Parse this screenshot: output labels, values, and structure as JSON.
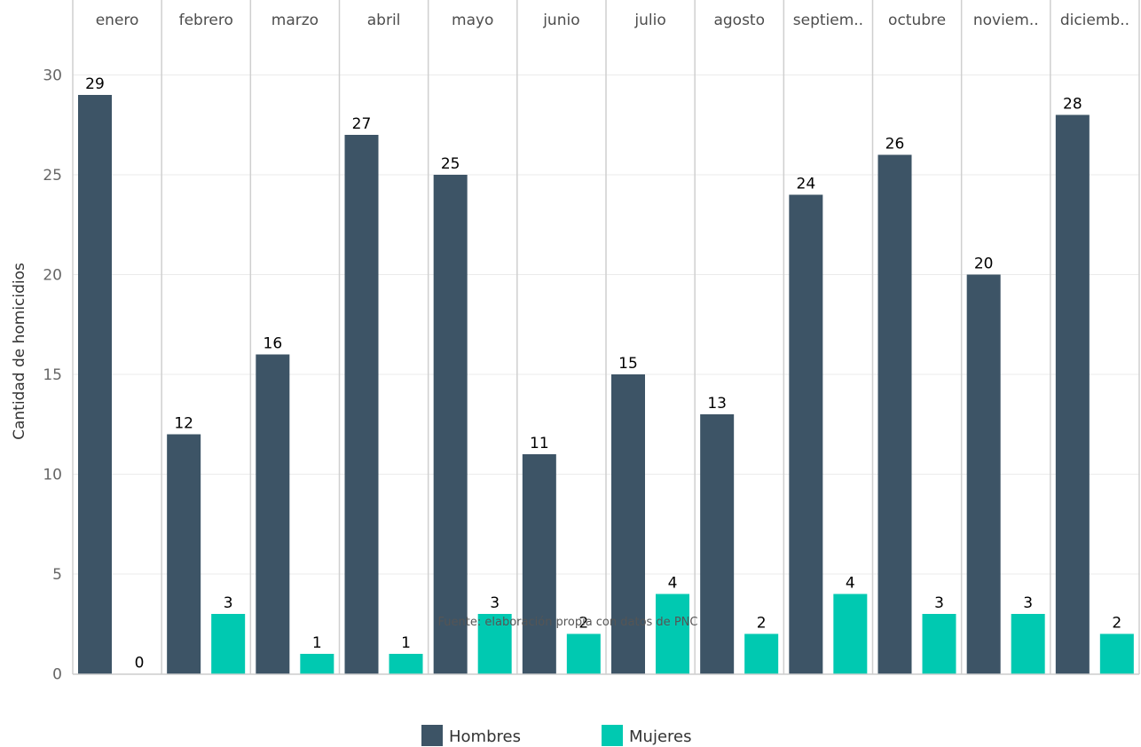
{
  "chart_data": {
    "type": "bar",
    "categories": [
      "enero",
      "febrero",
      "marzo",
      "abril",
      "mayo",
      "junio",
      "julio",
      "agosto",
      "septiem..",
      "octubre",
      "noviem..",
      "diciemb.."
    ],
    "series": [
      {
        "name": "Hombres",
        "values": [
          29,
          12,
          16,
          27,
          25,
          11,
          15,
          13,
          24,
          26,
          20,
          28
        ],
        "color": "#3d5466"
      },
      {
        "name": "Mujeres",
        "values": [
          0,
          3,
          1,
          1,
          3,
          2,
          4,
          2,
          4,
          3,
          3,
          2
        ],
        "color": "#00c9b1"
      }
    ],
    "ylabel": "Cantidad de homicidios",
    "xlabel": "",
    "ylim": [
      0,
      30
    ],
    "yticks": [
      0,
      5,
      10,
      15,
      20,
      25,
      30
    ],
    "caption": "Fuente: elaboración propia con datos de PNC",
    "legend_position": "bottom",
    "grid": true,
    "facet_by_category": true
  }
}
